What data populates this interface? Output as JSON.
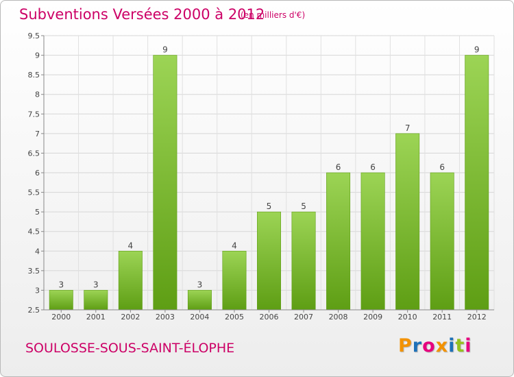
{
  "header": {
    "title": "Subventions Versées 2000 à 2012",
    "subtitle": "(en milliers d'€)"
  },
  "footer": {
    "place": "SOULOSSE-SOUS-SAINT-ÉLOPHE",
    "logo": "Proxiti"
  },
  "colors": {
    "title": "#cc0066",
    "bar_top": "#9cd455",
    "bar_bottom": "#5e9e14",
    "logo_letters": [
      "#f39200",
      "#1d71b8",
      "#e6007e",
      "#f39200",
      "#1d71b8",
      "#95c11f",
      "#e6007e"
    ]
  },
  "chart_data": {
    "type": "bar",
    "categories": [
      "2000",
      "2001",
      "2002",
      "2003",
      "2004",
      "2005",
      "2006",
      "2007",
      "2008",
      "2009",
      "2010",
      "2011",
      "2012"
    ],
    "values": [
      3,
      3,
      4,
      9,
      3,
      4,
      5,
      5,
      6,
      6,
      7,
      6,
      9
    ],
    "ylim": [
      2.5,
      9.5
    ],
    "yticks": [
      "2.5",
      "3",
      "3.5",
      "4",
      "4.5",
      "5",
      "5.5",
      "6",
      "6.5",
      "7",
      "7.5",
      "8",
      "8.5",
      "9",
      "9.5"
    ],
    "grid": true,
    "data_labels": true
  }
}
